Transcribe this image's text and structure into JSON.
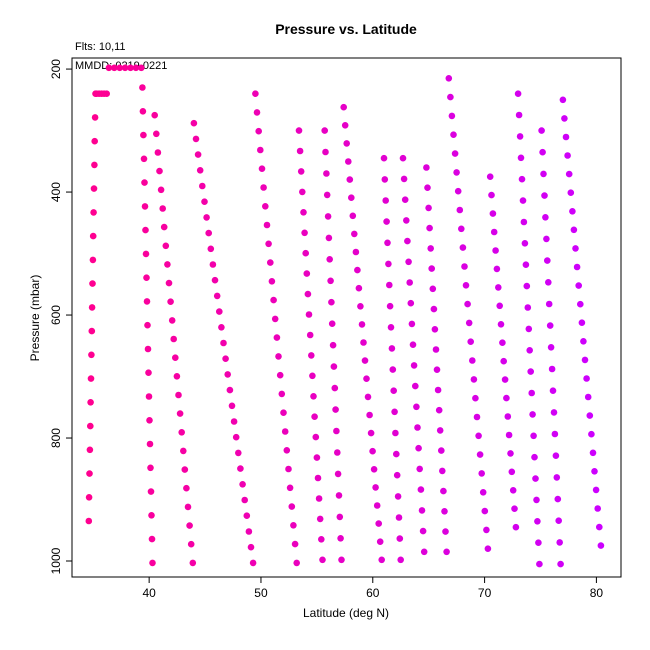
{
  "chart_data": {
    "type": "scatter",
    "title": "Pressure vs. Latitude",
    "annotations": [
      "Flts: 10,11",
      "MMDD: 0219,0221"
    ],
    "xlabel": "Latitude (deg N)",
    "ylabel": "Pressure (mbar)",
    "xlim": [
      33.1,
      82.2
    ],
    "ylim": [
      1026,
      182
    ],
    "y_reversed": true,
    "x_ticks": [
      40,
      50,
      60,
      70,
      80
    ],
    "y_ticks": [
      200,
      400,
      600,
      800,
      1000
    ],
    "grid": false,
    "color_start": "#ff0090",
    "color_end": "#cc00ff",
    "profiles": [
      {
        "lat_bottom": 34.6,
        "lat_top": 35.2,
        "p_bottom": 935,
        "p_top": 240
      },
      {
        "lat_top": 35.3,
        "lat_bottom": 36.2,
        "p_top": 240,
        "p_bottom": 240
      },
      {
        "lat_top": 36.4,
        "lat_bottom": 39.3,
        "p_top": 198,
        "p_bottom": 198
      },
      {
        "lat_top": 39.4,
        "lat_bottom": 40.3,
        "p_top": 230,
        "p_bottom": 1003
      },
      {
        "lat_top": 40.5,
        "lat_bottom": 43.9,
        "p_top": 275,
        "p_bottom": 1003
      },
      {
        "lat_top": 44.0,
        "lat_bottom": 49.3,
        "p_top": 288,
        "p_bottom": 1003
      },
      {
        "lat_top": 49.5,
        "lat_bottom": 53.2,
        "p_top": 240,
        "p_bottom": 1003
      },
      {
        "lat_top": 53.4,
        "lat_bottom": 55.5,
        "p_top": 300,
        "p_bottom": 998
      },
      {
        "lat_top": 55.7,
        "lat_bottom": 57.2,
        "p_top": 300,
        "p_bottom": 998
      },
      {
        "lat_top": 57.4,
        "lat_bottom": 60.8,
        "p_top": 262,
        "p_bottom": 998
      },
      {
        "lat_top": 61.0,
        "lat_bottom": 62.5,
        "p_top": 345,
        "p_bottom": 998
      },
      {
        "lat_top": 62.7,
        "lat_bottom": 64.6,
        "p_top": 345,
        "p_bottom": 985
      },
      {
        "lat_top": 64.8,
        "lat_bottom": 66.6,
        "p_top": 360,
        "p_bottom": 985
      },
      {
        "lat_top": 66.8,
        "lat_bottom": 70.3,
        "p_top": 215,
        "p_bottom": 980
      },
      {
        "lat_top": 70.5,
        "lat_bottom": 72.8,
        "p_top": 375,
        "p_bottom": 945
      },
      {
        "lat_top": 73.0,
        "lat_bottom": 74.9,
        "p_top": 240,
        "p_bottom": 1005
      },
      {
        "lat_top": 75.1,
        "lat_bottom": 76.8,
        "p_top": 300,
        "p_bottom": 1005
      },
      {
        "lat_top": 77.0,
        "lat_bottom": 80.4,
        "p_top": 250,
        "p_bottom": 975
      }
    ],
    "lines": [
      {
        "lat": 37.5,
        "p_top": 198,
        "p_bottom": 198
      }
    ]
  }
}
